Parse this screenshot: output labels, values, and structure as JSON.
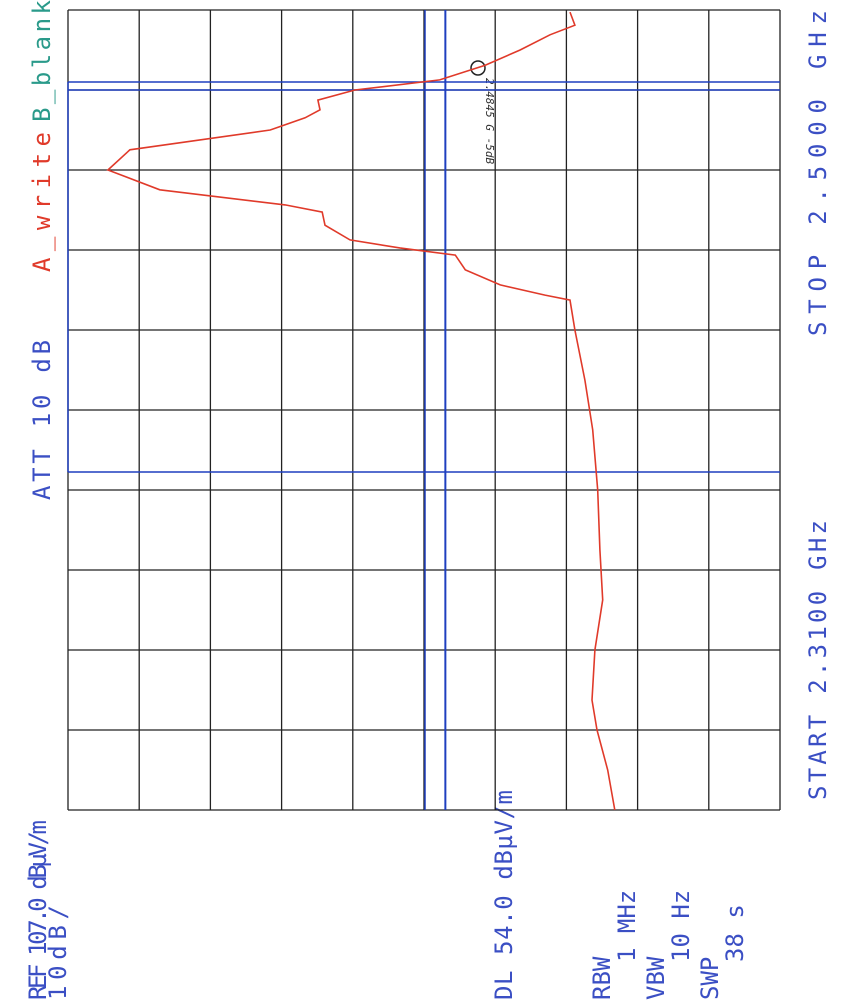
{
  "chart_data": {
    "type": "line",
    "top_left_label": "REF 107.0 dBµV/m",
    "scale_label": "10dB/",
    "attenuation_label": "ATT 10 dB",
    "trace_a_label": "A_write",
    "trace_b_label": "B_blank",
    "start_label": "START 2.3100 GHz",
    "stop_label": "STOP 2.5000 GHz",
    "display_line_label": "DL 54.0 dBµV/m",
    "display_line": 54,
    "settings": [
      "RBW",
      "1 MHz",
      "VBW",
      "10 Hz",
      "SWP",
      "38 s"
    ],
    "marker_note": "2.4845 G -5dB",
    "xlim": [
      2.31,
      2.5
    ],
    "ylim": [
      7,
      107
    ],
    "grid": true,
    "grid_color": "#222222",
    "line_color": "#1f3fbf",
    "series": [
      {
        "name": "A_write",
        "color": "#e03a2a",
        "x": [
          2.31,
          2.3195,
          2.329,
          2.3361,
          2.348,
          2.3599,
          2.3718,
          2.386,
          2.4003,
          2.4121,
          2.424,
          2.4311,
          2.4323,
          2.4347,
          2.4383,
          2.4418,
          2.4435,
          2.4454,
          2.4489,
          2.452,
          2.4537,
          2.4573,
          2.462,
          2.4668,
          2.4715,
          2.4744,
          2.4763,
          2.4786,
          2.481,
          2.4834,
          2.4869,
          2.4905,
          2.4941,
          2.4964,
          2.4995
        ],
        "values": [
          30.2,
          31.2,
          32.7,
          33.4,
          33,
          31.9,
          32.3,
          32.6,
          33.3,
          34.4,
          35.8,
          36.5,
          40,
          46.3,
          51.2,
          52.6,
          60.4,
          67.4,
          70.9,
          71.3,
          76.5,
          94.1,
          101.4,
          98.3,
          78.6,
          73.7,
          71.6,
          71.9,
          66.7,
          54.8,
          48.4,
          43.5,
          39.3,
          35.8,
          36.5
        ]
      }
    ]
  }
}
